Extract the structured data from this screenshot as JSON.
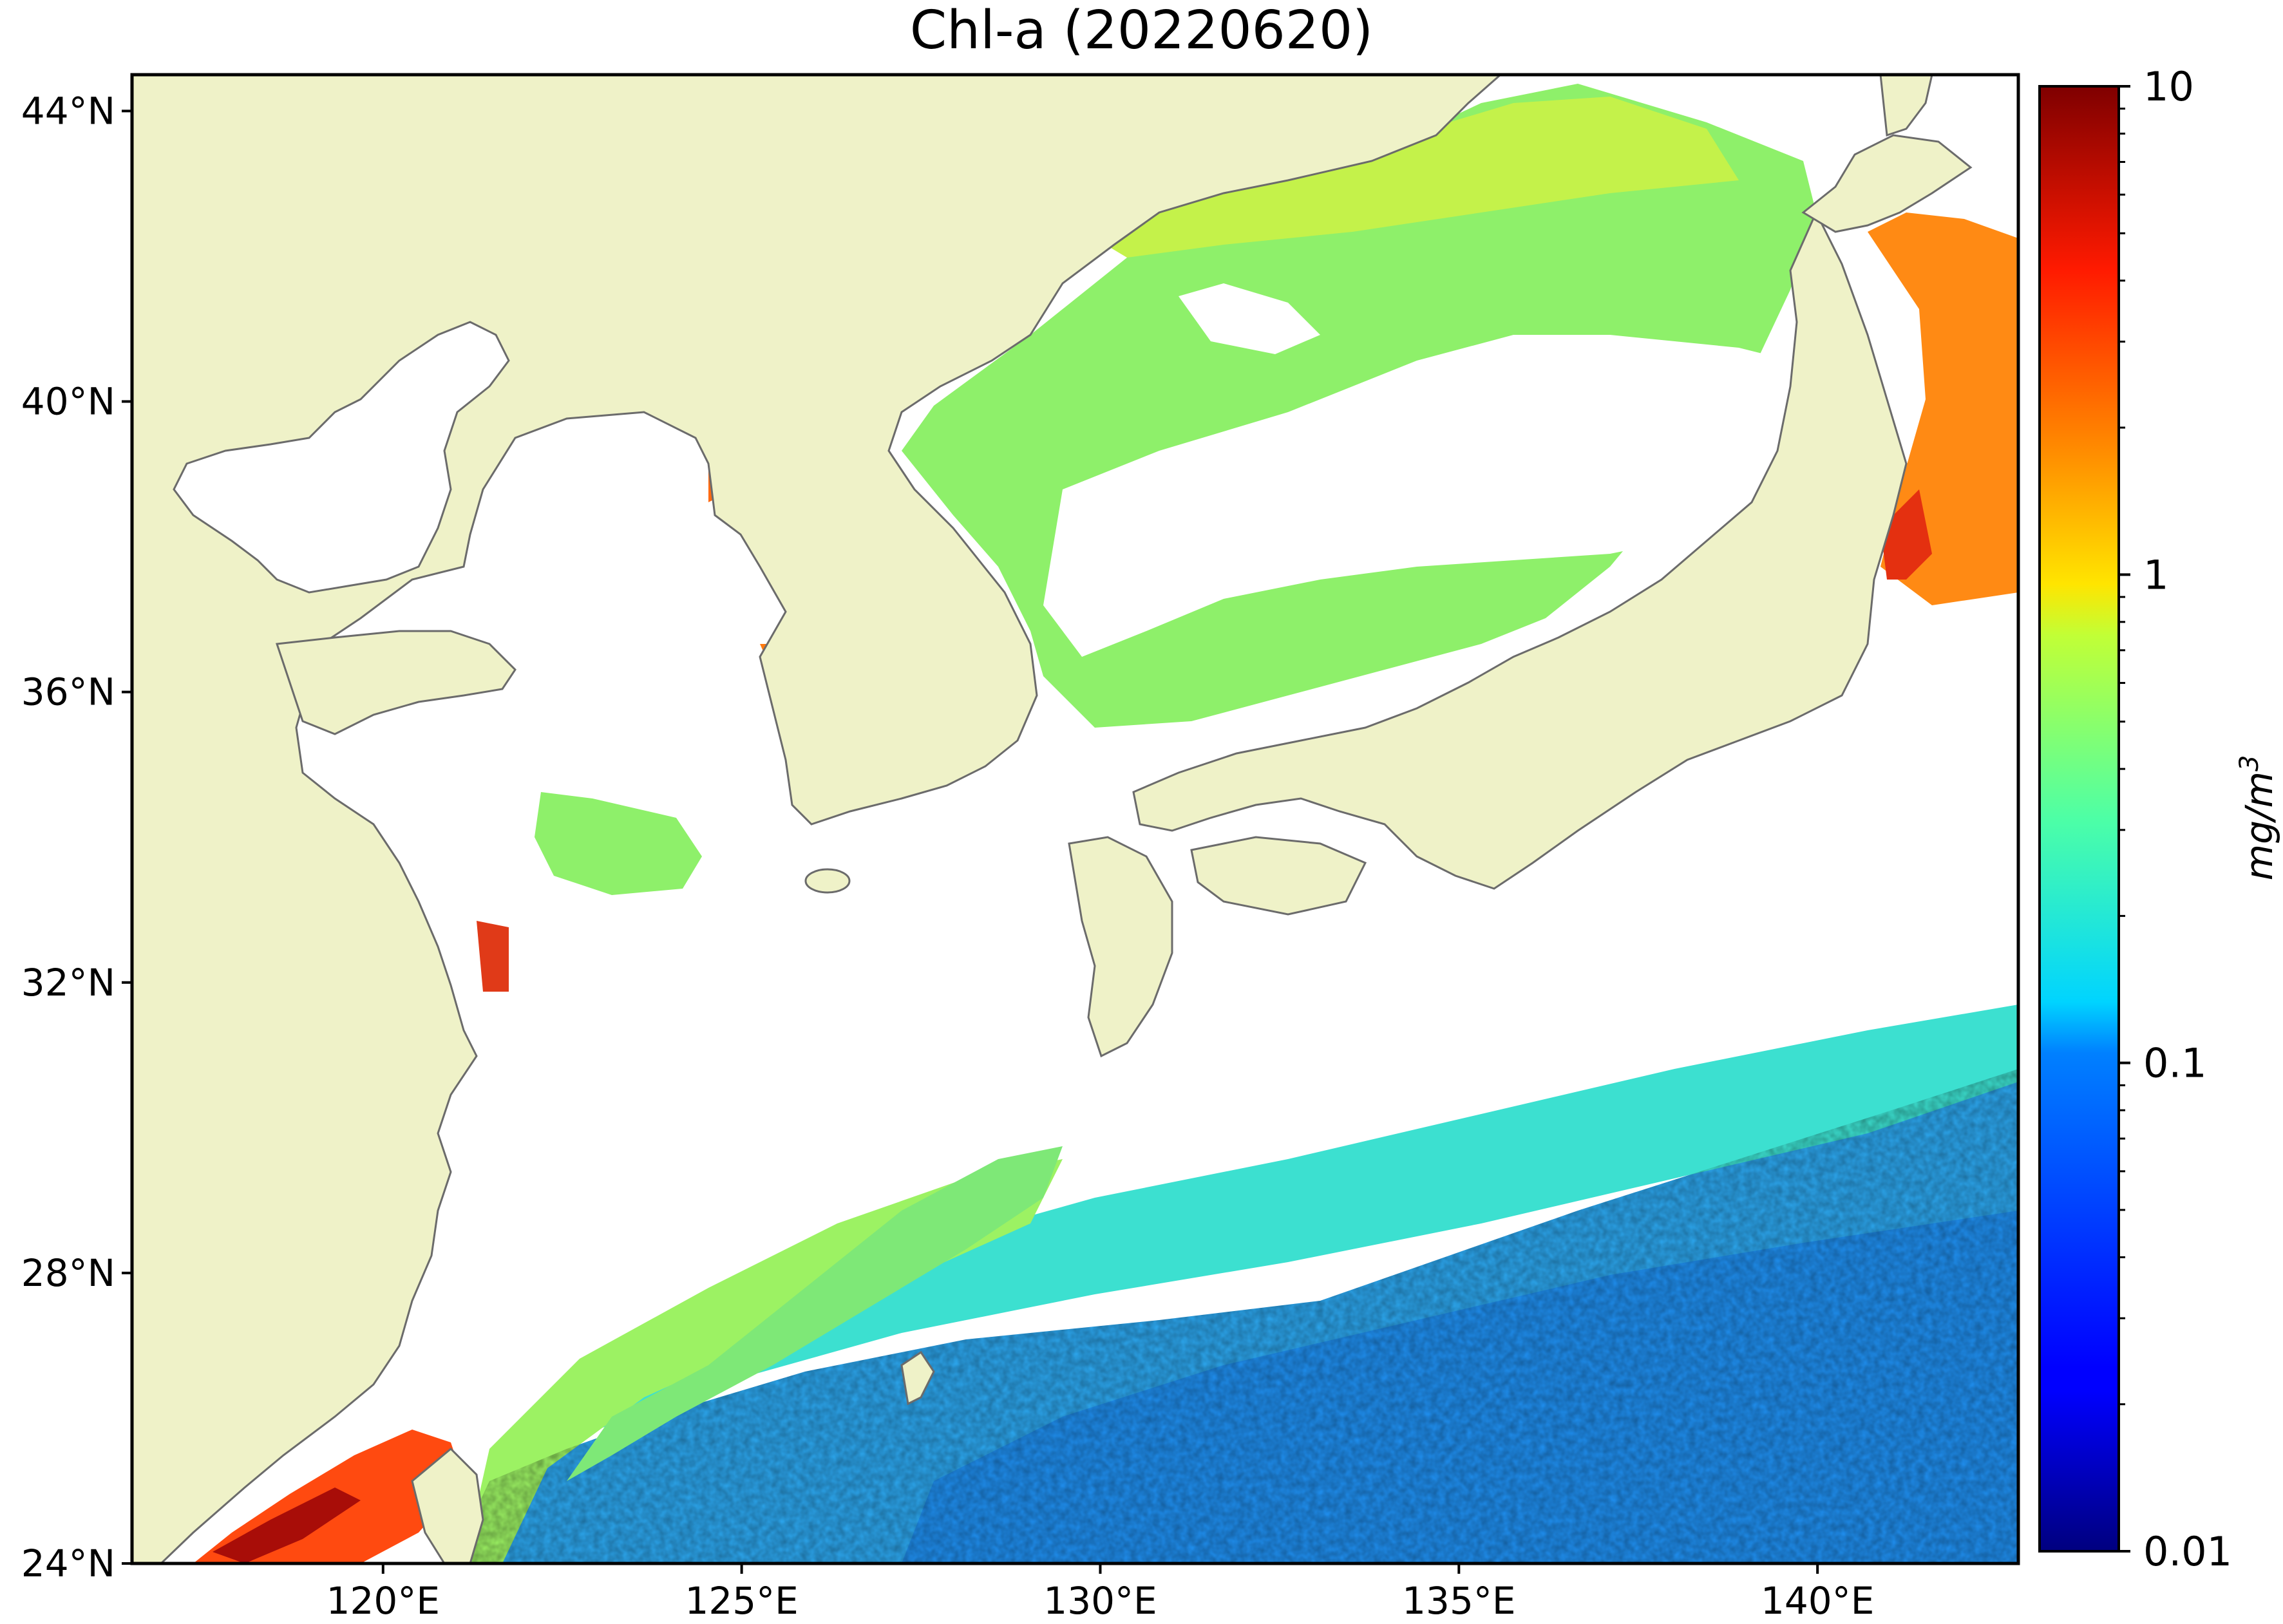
{
  "title": "Chl-a (20220620)",
  "map": {
    "projection": "equirectangular",
    "extent": {
      "lon_min": 116.5,
      "lon_max": 142.8,
      "lat_min": 24,
      "lat_max": 44.5
    },
    "land_color": "#eff2c8",
    "coast_color": "#6b6b6b",
    "cloud_mask_color": "#ffffff"
  },
  "axes": {
    "lon_ticks": [
      {
        "lon": 120,
        "label": "120°E"
      },
      {
        "lon": 125,
        "label": "125°E"
      },
      {
        "lon": 130,
        "label": "130°E"
      },
      {
        "lon": 135,
        "label": "135°E"
      },
      {
        "lon": 140,
        "label": "140°E"
      }
    ],
    "lat_ticks": [
      {
        "lat": 44,
        "label": "44°N"
      },
      {
        "lat": 40,
        "label": "40°N"
      },
      {
        "lat": 36,
        "label": "36°N"
      },
      {
        "lat": 32,
        "label": "32°N"
      },
      {
        "lat": 28,
        "label": "28°N"
      },
      {
        "lat": 24,
        "label": "24°N"
      }
    ]
  },
  "colorbar": {
    "scale": "log",
    "min": 0.01,
    "max": 10,
    "colormap": "jet",
    "major_ticks": [
      {
        "value": 10,
        "label": "10"
      },
      {
        "value": 1,
        "label": "1"
      },
      {
        "value": 0.1,
        "label": "0.1"
      },
      {
        "value": 0.01,
        "label": "0.01"
      }
    ],
    "unit_base": "mg/m",
    "unit_exp": "3"
  }
}
